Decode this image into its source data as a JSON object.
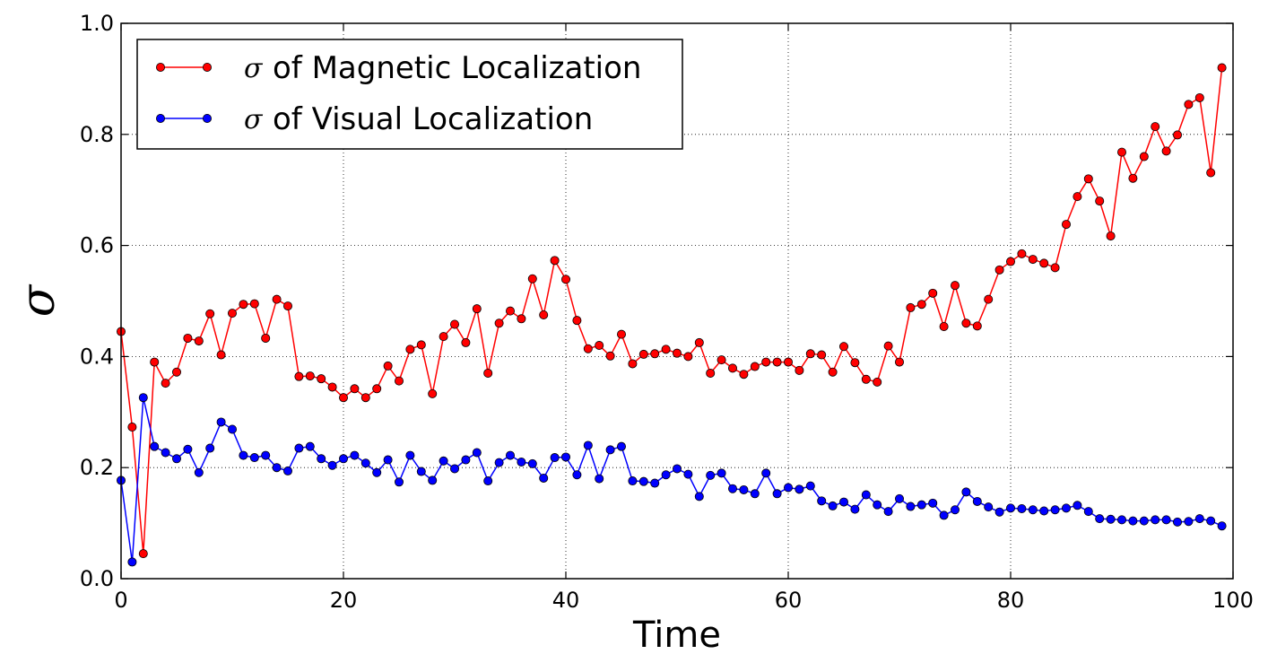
{
  "chart_data": {
    "type": "line",
    "title": "",
    "xlabel": "Time",
    "ylabel": "σ",
    "xlim": [
      0,
      100
    ],
    "ylim": [
      0.0,
      1.0
    ],
    "xticks": [
      "0",
      "20",
      "40",
      "60",
      "80",
      "100"
    ],
    "yticks": [
      "0.0",
      "0.2",
      "0.4",
      "0.6",
      "0.8",
      "1.0"
    ],
    "grid": true,
    "legend_position": "top-left",
    "x": [
      0,
      1,
      2,
      3,
      4,
      5,
      6,
      7,
      8,
      9,
      10,
      11,
      12,
      13,
      14,
      15,
      16,
      17,
      18,
      19,
      20,
      21,
      22,
      23,
      24,
      25,
      26,
      27,
      28,
      29,
      30,
      31,
      32,
      33,
      34,
      35,
      36,
      37,
      38,
      39,
      40,
      41,
      42,
      43,
      44,
      45,
      46,
      47,
      48,
      49,
      50,
      51,
      52,
      53,
      54,
      55,
      56,
      57,
      58,
      59,
      60,
      61,
      62,
      63,
      64,
      65,
      66,
      67,
      68,
      69,
      70,
      71,
      72,
      73,
      74,
      75,
      76,
      77,
      78,
      79,
      80,
      81,
      82,
      83,
      84,
      85,
      86,
      87,
      88,
      89,
      90,
      91,
      92,
      93,
      94,
      95,
      96,
      97,
      98,
      99
    ],
    "series": [
      {
        "name": "of Magnetic Localization",
        "symbol": "σ",
        "color": "#ff0000",
        "values": [
          0.445,
          0.273,
          0.045,
          0.39,
          0.352,
          0.372,
          0.433,
          0.428,
          0.477,
          0.403,
          0.478,
          0.494,
          0.495,
          0.433,
          0.503,
          0.491,
          0.364,
          0.365,
          0.36,
          0.345,
          0.326,
          0.342,
          0.326,
          0.342,
          0.383,
          0.356,
          0.413,
          0.421,
          0.333,
          0.436,
          0.458,
          0.425,
          0.486,
          0.37,
          0.46,
          0.482,
          0.468,
          0.54,
          0.475,
          0.573,
          0.539,
          0.465,
          0.414,
          0.42,
          0.401,
          0.44,
          0.387,
          0.404,
          0.405,
          0.413,
          0.406,
          0.4,
          0.425,
          0.37,
          0.394,
          0.379,
          0.368,
          0.382,
          0.39,
          0.39,
          0.39,
          0.375,
          0.405,
          0.403,
          0.372,
          0.418,
          0.389,
          0.359,
          0.354,
          0.419,
          0.39,
          0.488,
          0.494,
          0.514,
          0.454,
          0.528,
          0.46,
          0.455,
          0.503,
          0.556,
          0.571,
          0.585,
          0.575,
          0.568,
          0.56,
          0.638,
          0.688,
          0.72,
          0.68,
          0.617,
          0.768,
          0.721,
          0.76,
          0.814,
          0.77,
          0.799,
          0.854,
          0.866,
          0.731,
          0.92
        ]
      },
      {
        "name": "of Visual Localization",
        "symbol": "σ",
        "color": "#0000ff",
        "values": [
          0.177,
          0.03,
          0.326,
          0.238,
          0.227,
          0.216,
          0.233,
          0.191,
          0.235,
          0.282,
          0.269,
          0.222,
          0.218,
          0.222,
          0.2,
          0.194,
          0.235,
          0.238,
          0.216,
          0.204,
          0.216,
          0.222,
          0.208,
          0.191,
          0.214,
          0.174,
          0.222,
          0.193,
          0.177,
          0.212,
          0.198,
          0.214,
          0.227,
          0.176,
          0.209,
          0.222,
          0.21,
          0.207,
          0.181,
          0.218,
          0.219,
          0.187,
          0.24,
          0.18,
          0.232,
          0.238,
          0.176,
          0.175,
          0.172,
          0.187,
          0.198,
          0.188,
          0.148,
          0.186,
          0.19,
          0.162,
          0.16,
          0.153,
          0.19,
          0.153,
          0.164,
          0.161,
          0.167,
          0.14,
          0.131,
          0.138,
          0.125,
          0.151,
          0.133,
          0.121,
          0.144,
          0.13,
          0.133,
          0.136,
          0.114,
          0.124,
          0.156,
          0.139,
          0.129,
          0.12,
          0.127,
          0.126,
          0.124,
          0.122,
          0.124,
          0.127,
          0.132,
          0.121,
          0.108,
          0.107,
          0.106,
          0.104,
          0.104,
          0.106,
          0.106,
          0.102,
          0.103,
          0.108,
          0.104,
          0.095
        ]
      }
    ]
  }
}
